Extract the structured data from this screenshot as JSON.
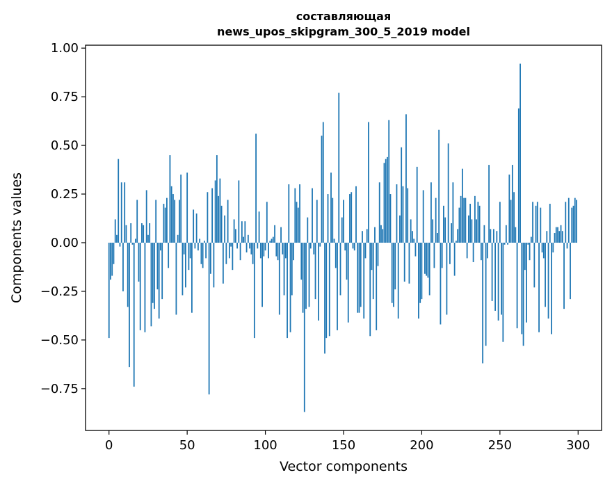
{
  "chart_data": {
    "type": "bar",
    "title_lines": [
      "составляющая",
      "news_upos_skipgram_300_5_2019 model"
    ],
    "xlabel": "Vector components",
    "ylabel": "Components values",
    "xlim": [
      -15,
      315
    ],
    "ylim": [
      -0.965,
      1.015
    ],
    "xticks": [
      0,
      50,
      100,
      150,
      200,
      250,
      300
    ],
    "xtick_labels": [
      "0",
      "50",
      "100",
      "150",
      "200",
      "250",
      "300"
    ],
    "yticks": [
      -0.75,
      -0.5,
      -0.25,
      0.0,
      0.25,
      0.5,
      0.75,
      1.0
    ],
    "ytick_labels": [
      "−0.75",
      "−0.50",
      "−0.25",
      "0.00",
      "0.25",
      "0.50",
      "0.75",
      "1.00"
    ],
    "bar_color": "#1f77b4",
    "grid": false,
    "values": [
      -0.49,
      -0.19,
      -0.17,
      -0.11,
      0.12,
      0.04,
      0.43,
      -0.02,
      0.31,
      -0.25,
      0.31,
      0.09,
      -0.33,
      -0.64,
      0.1,
      -0.01,
      -0.74,
      0.02,
      0.22,
      -0.2,
      -0.45,
      0.1,
      0.09,
      -0.46,
      0.27,
      0.04,
      0.1,
      -0.43,
      -0.31,
      -0.34,
      0.22,
      -0.24,
      -0.39,
      -0.04,
      -0.29,
      0.2,
      0.18,
      0.23,
      -0.13,
      0.45,
      0.29,
      0.25,
      0.22,
      -0.37,
      0.04,
      0.22,
      0.35,
      -0.27,
      -0.06,
      -0.23,
      0.36,
      -0.14,
      -0.08,
      -0.36,
      0.17,
      -0.03,
      0.15,
      -0.04,
      0.02,
      -0.11,
      -0.13,
      0.01,
      -0.08,
      0.26,
      -0.78,
      -0.16,
      0.28,
      -0.23,
      0.32,
      0.45,
      0.24,
      0.33,
      0.19,
      -0.21,
      0.14,
      -0.11,
      0.22,
      -0.08,
      -0.02,
      -0.14,
      0.12,
      0.07,
      -0.03,
      0.32,
      -0.09,
      0.11,
      0.03,
      0.11,
      -0.05,
      0.04,
      -0.03,
      -0.06,
      -0.11,
      -0.49,
      0.56,
      -0.03,
      0.16,
      -0.08,
      -0.33,
      -0.07,
      -0.04,
      0.21,
      -0.08,
      0.01,
      0.02,
      0.03,
      0.09,
      -0.07,
      -0.09,
      -0.37,
      0.08,
      -0.06,
      -0.27,
      -0.08,
      -0.49,
      0.3,
      -0.46,
      -0.27,
      -0.09,
      0.28,
      0.21,
      0.18,
      0.3,
      -0.19,
      -0.36,
      -0.87,
      -0.34,
      0.13,
      -0.33,
      -0.03,
      0.28,
      -0.06,
      -0.29,
      0.22,
      -0.4,
      -0.02,
      0.55,
      0.62,
      -0.57,
      -0.49,
      0.25,
      -0.48,
      0.36,
      0.23,
      0.02,
      -0.13,
      -0.45,
      0.77,
      -0.27,
      0.13,
      0.22,
      -0.04,
      -0.19,
      -0.41,
      0.25,
      0.26,
      -0.03,
      -0.04,
      0.29,
      -0.36,
      -0.36,
      -0.33,
      0.06,
      -0.39,
      -0.08,
      0.07,
      0.62,
      -0.48,
      -0.14,
      -0.29,
      0.08,
      -0.45,
      -0.12,
      0.31,
      0.09,
      0.07,
      0.41,
      0.43,
      0.44,
      0.63,
      0.25,
      -0.31,
      -0.33,
      -0.24,
      0.3,
      -0.39,
      0.14,
      0.49,
      0.29,
      -0.2,
      0.66,
      0.28,
      -0.21,
      0.12,
      0.06,
      0.02,
      -0.07,
      0.39,
      -0.39,
      -0.31,
      -0.29,
      0.27,
      -0.16,
      -0.17,
      -0.18,
      -0.27,
      0.31,
      0.12,
      -0.13,
      0.23,
      0.05,
      0.58,
      -0.42,
      -0.13,
      0.19,
      0.13,
      -0.37,
      0.51,
      -0.11,
      0.1,
      0.31,
      -0.17,
      0.01,
      0.07,
      0.18,
      0.24,
      0.38,
      0.23,
      0.23,
      -0.08,
      0.14,
      0.2,
      0.12,
      -0.1,
      0.24,
      0.12,
      0.21,
      0.19,
      -0.09,
      -0.62,
      0.09,
      -0.53,
      -0.08,
      0.4,
      0.07,
      -0.3,
      0.07,
      -0.35,
      0.06,
      -0.4,
      0.21,
      -0.37,
      -0.51,
      -0.01,
      0.09,
      -0.01,
      0.35,
      0.22,
      0.4,
      0.26,
      0.08,
      -0.44,
      0.69,
      0.92,
      -0.47,
      -0.53,
      -0.14,
      -0.41,
      -0.01,
      -0.09,
      0.03,
      0.21,
      -0.23,
      0.19,
      0.21,
      -0.46,
      0.18,
      -0.05,
      -0.08,
      -0.33,
      0.06,
      -0.39,
      0.2,
      -0.47,
      -0.05,
      0.05,
      0.08,
      0.08,
      0.06,
      0.09,
      0.06,
      -0.34,
      0.21,
      -0.03,
      0.23,
      -0.29,
      0.18,
      0.19,
      0.23,
      0.22
    ]
  }
}
